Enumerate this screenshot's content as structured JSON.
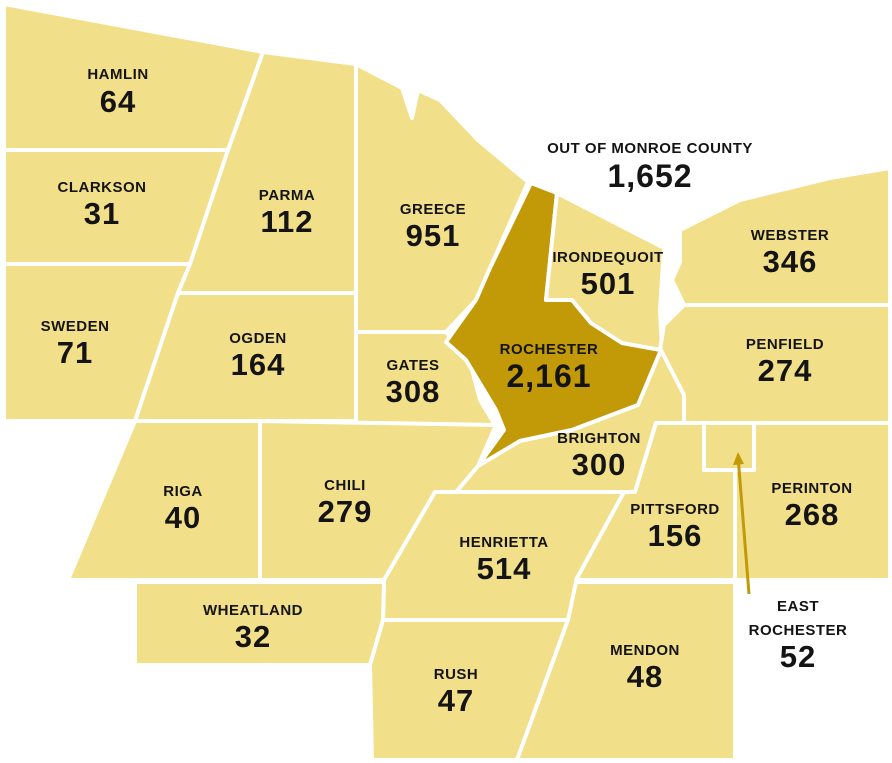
{
  "title": "",
  "colors": {
    "town_fill": "#f2df8a",
    "city_fill": "#c29a07",
    "border": "#ffffff",
    "text": "#141414"
  },
  "out_of_county": {
    "name": "OUT OF MONROE COUNTY",
    "count": "1,652"
  },
  "regions": {
    "hamlin": {
      "name": "HAMLIN",
      "count": "64"
    },
    "clarkson": {
      "name": "CLARKSON",
      "count": "31"
    },
    "sweden": {
      "name": "SWEDEN",
      "count": "71"
    },
    "parma": {
      "name": "PARMA",
      "count": "112"
    },
    "ogden": {
      "name": "OGDEN",
      "count": "164"
    },
    "greece": {
      "name": "GREECE",
      "count": "951"
    },
    "gates": {
      "name": "GATES",
      "count": "308"
    },
    "rochester": {
      "name": "ROCHESTER",
      "count": "2,161"
    },
    "irondequoit": {
      "name": "IRONDEQUOIT",
      "count": "501"
    },
    "webster": {
      "name": "WEBSTER",
      "count": "346"
    },
    "penfield": {
      "name": "PENFIELD",
      "count": "274"
    },
    "brighton": {
      "name": "BRIGHTON",
      "count": "300"
    },
    "riga": {
      "name": "RIGA",
      "count": "40"
    },
    "chili": {
      "name": "CHILI",
      "count": "279"
    },
    "henrietta": {
      "name": "HENRIETTA",
      "count": "514"
    },
    "pittsford": {
      "name": "PITTSFORD",
      "count": "156"
    },
    "perinton": {
      "name": "PERINTON",
      "count": "268"
    },
    "wheatland": {
      "name": "WHEATLAND",
      "count": "32"
    },
    "rush": {
      "name": "RUSH",
      "count": "47"
    },
    "mendon": {
      "name": "MENDON",
      "count": "48"
    },
    "east_rochester": {
      "name_line1": "EAST",
      "name_line2": "ROCHESTER",
      "count": "52"
    }
  }
}
